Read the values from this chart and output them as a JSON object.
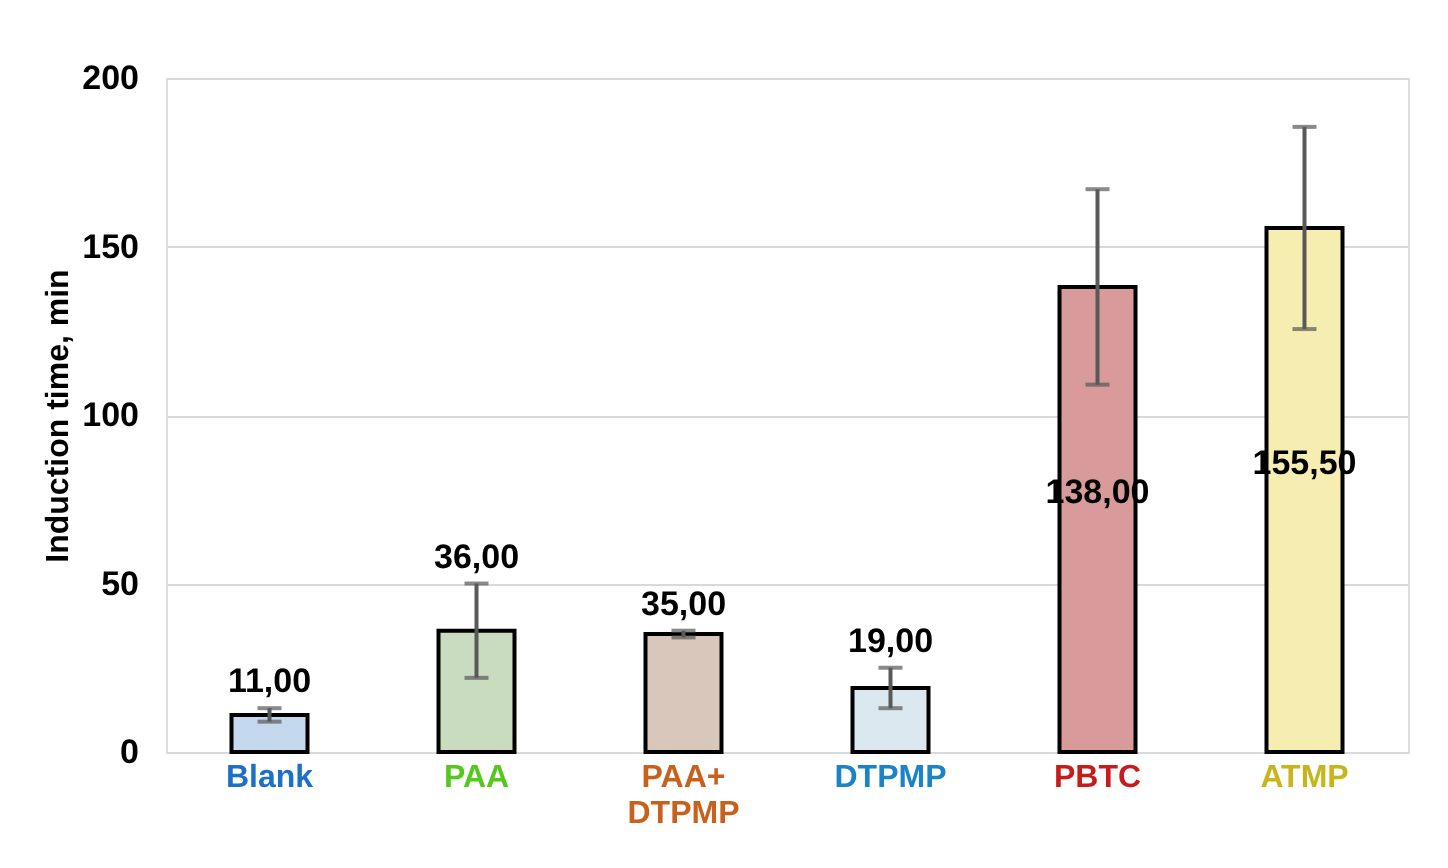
{
  "chart_data": {
    "type": "bar",
    "ylabel": "Induction time, min",
    "categories": [
      "Blank",
      "PAA",
      "PAA+ DTPMP",
      "DTPMP",
      "PBTC",
      "ATMP"
    ],
    "values": [
      11,
      36,
      35,
      19,
      138,
      155.5
    ],
    "errors": [
      2,
      14,
      1,
      6,
      29,
      30
    ],
    "value_labels": [
      "11,00",
      "36,00",
      "35,00",
      "19,00",
      "138,00",
      "155,50"
    ],
    "colors": [
      "#c5d9ee",
      "#c9dcc0",
      "#d9c7bb",
      "#dce8f0",
      "#d89a9a",
      "#f6eeb0"
    ],
    "ylim": [
      0,
      200
    ],
    "yticks": [
      0,
      50,
      100,
      150,
      200
    ],
    "grid": "y"
  }
}
